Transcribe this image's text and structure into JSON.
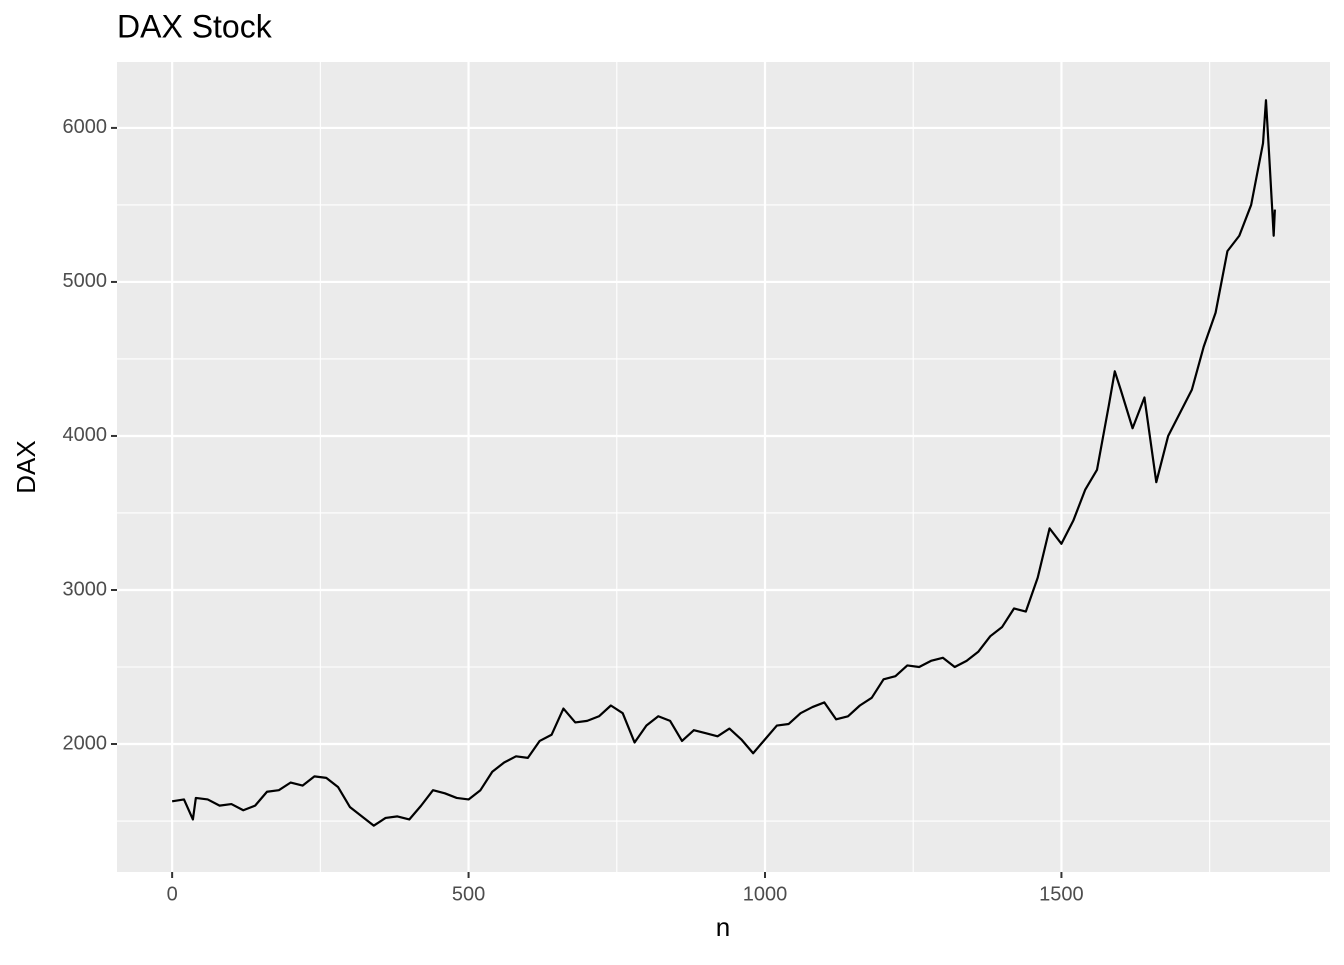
{
  "chart_data": {
    "type": "line",
    "title": "DAX Stock",
    "x_label": "n",
    "y_label": "DAX",
    "x": [
      0,
      20,
      35,
      40,
      60,
      80,
      100,
      120,
      140,
      160,
      180,
      200,
      220,
      240,
      260,
      280,
      300,
      320,
      340,
      360,
      380,
      400,
      420,
      440,
      460,
      480,
      500,
      520,
      540,
      560,
      580,
      600,
      620,
      640,
      660,
      680,
      700,
      720,
      740,
      760,
      780,
      800,
      820,
      840,
      860,
      880,
      900,
      920,
      940,
      960,
      980,
      1000,
      1020,
      1040,
      1060,
      1080,
      1100,
      1120,
      1140,
      1160,
      1180,
      1200,
      1220,
      1240,
      1260,
      1280,
      1300,
      1320,
      1340,
      1360,
      1380,
      1400,
      1420,
      1440,
      1460,
      1480,
      1500,
      1520,
      1540,
      1560,
      1580,
      1590,
      1600,
      1620,
      1640,
      1660,
      1680,
      1700,
      1720,
      1740,
      1760,
      1780,
      1800,
      1820,
      1840,
      1845,
      1850,
      1858,
      1860
    ],
    "series": [
      {
        "name": "DAX",
        "color": "#000000",
        "values": [
          1628,
          1640,
          1510,
          1650,
          1640,
          1600,
          1610,
          1570,
          1600,
          1690,
          1700,
          1750,
          1730,
          1790,
          1780,
          1720,
          1590,
          1530,
          1470,
          1520,
          1530,
          1510,
          1600,
          1700,
          1680,
          1650,
          1640,
          1700,
          1820,
          1880,
          1920,
          1910,
          2020,
          2060,
          2230,
          2140,
          2150,
          2180,
          2250,
          2200,
          2010,
          2120,
          2180,
          2150,
          2020,
          2090,
          2070,
          2050,
          2100,
          2030,
          1940,
          2030,
          2120,
          2130,
          2200,
          2240,
          2270,
          2160,
          2180,
          2250,
          2300,
          2420,
          2440,
          2510,
          2500,
          2540,
          2560,
          2500,
          2540,
          2600,
          2700,
          2760,
          2880,
          2860,
          3080,
          3400,
          3300,
          3450,
          3650,
          3780,
          4200,
          4420,
          4300,
          4050,
          4250,
          3700,
          4000,
          4150,
          4300,
          4580,
          4800,
          5200,
          5300,
          5500,
          5900,
          6180,
          5850,
          5300,
          5470
        ]
      }
    ],
    "xlim": [
      -93,
      1953
    ],
    "ylim": [
      1169,
      6428
    ],
    "xticks": [
      0,
      500,
      1000,
      1500
    ],
    "yticks": [
      2000,
      3000,
      4000,
      5000,
      6000
    ],
    "x_minor_ticks": [
      250,
      750,
      1250,
      1750
    ],
    "y_minor_ticks": [
      1500,
      2500,
      3500,
      4500,
      5500
    ],
    "grid": true
  }
}
